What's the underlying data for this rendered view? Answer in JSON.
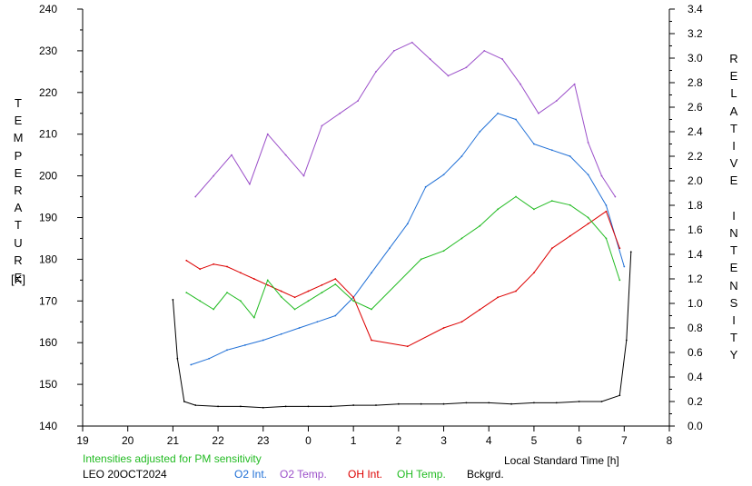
{
  "chart_data": {
    "type": "line",
    "xlabel": "Local Standard Time [h]",
    "ylabel_left": "TEMPERATURE",
    "ylabel_left_unit": "[K]",
    "ylabel_right": "RELATIVE INTENSITY",
    "x_ticks": [
      "19",
      "20",
      "21",
      "22",
      "23",
      "0",
      "1",
      "2",
      "3",
      "4",
      "5",
      "6",
      "7",
      "8"
    ],
    "y_left_ticks": [
      "140",
      "150",
      "160",
      "170",
      "180",
      "190",
      "200",
      "210",
      "220",
      "230",
      "240"
    ],
    "y_right_ticks": [
      "0.0",
      "0.2",
      "0.4",
      "0.6",
      "0.8",
      "1.0",
      "1.2",
      "1.4",
      "1.6",
      "1.8",
      "2.0",
      "2.2",
      "2.4",
      "2.6",
      "2.8",
      "3.0",
      "3.2",
      "3.4"
    ],
    "xlim": [
      19,
      32
    ],
    "ylim_left": [
      140,
      240
    ],
    "ylim_right": [
      0,
      3.4
    ],
    "grid": false,
    "note": "Intensities adjusted for PM sensitivity",
    "station_date": "LEO 20OCT2024",
    "legend_position": "bottom",
    "series": [
      {
        "name": "O2 Int.",
        "axis": "right",
        "color": "#1f6fd6",
        "x": [
          21.4,
          21.8,
          22.2,
          22.6,
          23.0,
          23.4,
          23.8,
          24.2,
          24.6,
          25.0,
          25.4,
          25.8,
          26.2,
          26.6,
          27.0,
          27.4,
          27.8,
          28.2,
          28.6,
          29.0,
          29.4,
          29.8,
          30.2,
          30.6,
          31.0
        ],
        "y": [
          0.5,
          0.55,
          0.62,
          0.66,
          0.7,
          0.75,
          0.8,
          0.85,
          0.9,
          1.05,
          1.25,
          1.45,
          1.65,
          1.95,
          2.05,
          2.2,
          2.4,
          2.55,
          2.5,
          2.3,
          2.25,
          2.2,
          2.05,
          1.8,
          1.3
        ]
      },
      {
        "name": "O2 Temp.",
        "axis": "left",
        "color": "#9b4fc9",
        "x": [
          21.5,
          21.9,
          22.3,
          22.7,
          23.1,
          23.5,
          23.9,
          24.3,
          24.7,
          25.1,
          25.5,
          25.9,
          26.3,
          26.7,
          27.1,
          27.5,
          27.9,
          28.3,
          28.7,
          29.1,
          29.5,
          29.9,
          30.2,
          30.5,
          30.8
        ],
        "y": [
          195,
          200,
          205,
          198,
          210,
          205,
          200,
          212,
          215,
          218,
          225,
          230,
          232,
          228,
          224,
          226,
          230,
          228,
          222,
          215,
          218,
          222,
          208,
          200,
          195
        ]
      },
      {
        "name": "OH Int.",
        "axis": "right",
        "color": "#dd0000",
        "x": [
          21.3,
          21.6,
          21.9,
          22.2,
          22.5,
          22.8,
          23.1,
          23.4,
          23.7,
          24.0,
          24.3,
          24.6,
          25.0,
          25.4,
          26.2,
          27.0,
          27.4,
          27.8,
          28.2,
          28.6,
          29.0,
          29.4,
          29.8,
          30.2,
          30.6,
          30.9
        ],
        "y": [
          1.35,
          1.28,
          1.32,
          1.3,
          1.25,
          1.2,
          1.15,
          1.1,
          1.05,
          1.1,
          1.15,
          1.2,
          1.05,
          0.7,
          0.65,
          0.8,
          0.85,
          0.95,
          1.05,
          1.1,
          1.25,
          1.45,
          1.55,
          1.65,
          1.75,
          1.45
        ]
      },
      {
        "name": "OH Temp.",
        "axis": "left",
        "color": "#22bb22",
        "x": [
          21.3,
          21.6,
          21.9,
          22.2,
          22.5,
          22.8,
          23.1,
          23.4,
          23.7,
          24.0,
          24.3,
          24.6,
          25.0,
          25.4,
          26.5,
          27.0,
          27.4,
          27.8,
          28.2,
          28.6,
          29.0,
          29.4,
          29.8,
          30.2,
          30.6,
          30.9
        ],
        "y": [
          172,
          170,
          168,
          172,
          170,
          166,
          175,
          171,
          168,
          170,
          172,
          174,
          170,
          168,
          180,
          182,
          185,
          188,
          192,
          195,
          192,
          194,
          193,
          190,
          185,
          175
        ]
      },
      {
        "name": "Bckgrd.",
        "axis": "right",
        "color": "#000000",
        "x": [
          21.0,
          21.1,
          21.25,
          21.5,
          22.0,
          22.5,
          23.0,
          23.5,
          24.0,
          24.5,
          25.0,
          25.5,
          26.0,
          26.5,
          27.0,
          27.5,
          28.0,
          28.5,
          29.0,
          29.5,
          30.0,
          30.5,
          30.9,
          31.05,
          31.15
        ],
        "y": [
          1.03,
          0.55,
          0.2,
          0.17,
          0.16,
          0.16,
          0.15,
          0.16,
          0.16,
          0.16,
          0.17,
          0.17,
          0.18,
          0.18,
          0.18,
          0.19,
          0.19,
          0.18,
          0.19,
          0.19,
          0.2,
          0.2,
          0.25,
          0.7,
          1.42
        ]
      }
    ]
  },
  "legend": [
    {
      "label": "O2 Int.",
      "color": "#1f6fd6"
    },
    {
      "label": "O2 Temp.",
      "color": "#9b4fc9"
    },
    {
      "label": "OH Int.",
      "color": "#dd0000"
    },
    {
      "label": "OH Temp.",
      "color": "#22bb22"
    },
    {
      "label": "Bckgrd.",
      "color": "#000000"
    }
  ],
  "colors": {
    "note": "#22bb22",
    "axis": "#000000",
    "background": "#ffffff"
  }
}
